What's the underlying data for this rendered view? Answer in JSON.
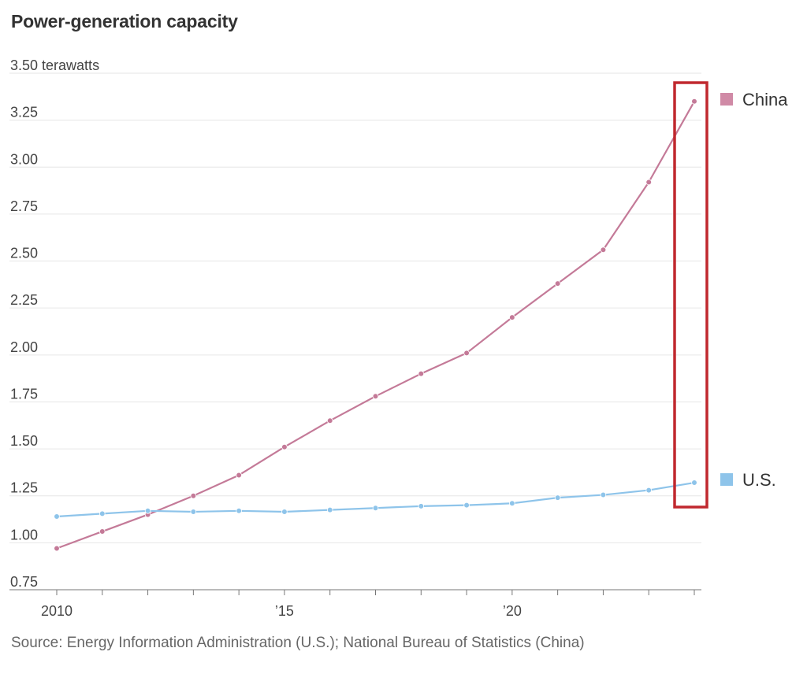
{
  "title": "Power-generation capacity",
  "source": "Source: Energy Information Administration (U.S.); National Bureau of Statistics (China)",
  "colors": {
    "china": "#c47a98",
    "china_legend": "#d08aa6",
    "us": "#8ec4ea",
    "grid": "#e6e6e6",
    "axis": "#777777",
    "highlight": "#c0282e"
  },
  "chart_data": {
    "type": "line",
    "title": "Power-generation capacity",
    "ylabel": "terawatts",
    "y_tick_labels": [
      "3.50 terawatts",
      "3.25",
      "3.00",
      "2.75",
      "2.50",
      "2.25",
      "2.00",
      "1.75",
      "1.50",
      "1.25",
      "1.00",
      "0.75"
    ],
    "y_ticks": [
      3.5,
      3.25,
      3.0,
      2.75,
      2.5,
      2.25,
      2.0,
      1.75,
      1.5,
      1.25,
      1.0,
      0.75
    ],
    "ylim": [
      0.75,
      3.5
    ],
    "x": [
      2010,
      2011,
      2012,
      2013,
      2014,
      2015,
      2016,
      2017,
      2018,
      2019,
      2020,
      2021,
      2022,
      2023,
      2024
    ],
    "x_tick_labels": [
      {
        "x": 2010,
        "label": "2010"
      },
      {
        "x": 2015,
        "label": "’15"
      },
      {
        "x": 2020,
        "label": "’20"
      }
    ],
    "series": [
      {
        "name": "China",
        "values": [
          0.97,
          1.06,
          1.15,
          1.25,
          1.36,
          1.51,
          1.65,
          1.78,
          1.9,
          2.01,
          2.2,
          2.38,
          2.56,
          2.92,
          3.35
        ]
      },
      {
        "name": "U.S.",
        "values": [
          1.14,
          1.155,
          1.17,
          1.165,
          1.17,
          1.165,
          1.175,
          1.185,
          1.195,
          1.2,
          1.21,
          1.24,
          1.255,
          1.28,
          1.32
        ]
      }
    ],
    "legend": "right",
    "grid": true,
    "highlight": {
      "x": 2024,
      "shape": "rectangle"
    }
  }
}
